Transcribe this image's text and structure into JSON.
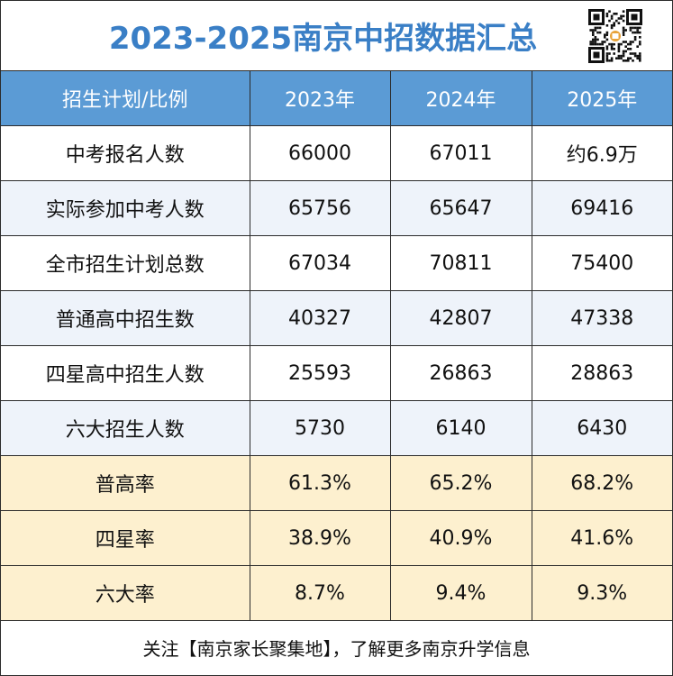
{
  "title": "2023-2025南京中招数据汇总",
  "qr_icon": "qr-code-icon",
  "table": {
    "headers": [
      "招生计划/比例",
      "2023年",
      "2024年",
      "2025年"
    ],
    "rows": [
      {
        "label": "中考报名人数",
        "values": [
          "66000",
          "67011",
          "约6.9万"
        ],
        "style": "white"
      },
      {
        "label": "实际参加中考人数",
        "values": [
          "65756",
          "65647",
          "69416"
        ],
        "style": "blue"
      },
      {
        "label": "全市招生计划总数",
        "values": [
          "67034",
          "70811",
          "75400"
        ],
        "style": "white"
      },
      {
        "label": "普通高中招生数",
        "values": [
          "40327",
          "42807",
          "47338"
        ],
        "style": "blue"
      },
      {
        "label": "四星高中招生人数",
        "values": [
          "25593",
          "26863",
          "28863"
        ],
        "style": "white"
      },
      {
        "label": "六大招生人数",
        "values": [
          "5730",
          "6140",
          "6430"
        ],
        "style": "blue"
      },
      {
        "label": "普高率",
        "values": [
          "61.3%",
          "65.2%",
          "68.2%"
        ],
        "style": "rate"
      },
      {
        "label": "四星率",
        "values": [
          "38.9%",
          "40.9%",
          "41.6%"
        ],
        "style": "rate"
      },
      {
        "label": "六大率",
        "values": [
          "8.7%",
          "9.4%",
          "9.3%"
        ],
        "style": "rate"
      }
    ]
  },
  "colors": {
    "title": "#3a7fc6",
    "header_bg": "#5b9bd5",
    "alt_row_bg": "#eef3fa",
    "rate_row_bg": "#fdf0cf"
  },
  "footer": "关注【南京家长聚集地】，了解更多南京升学信息"
}
